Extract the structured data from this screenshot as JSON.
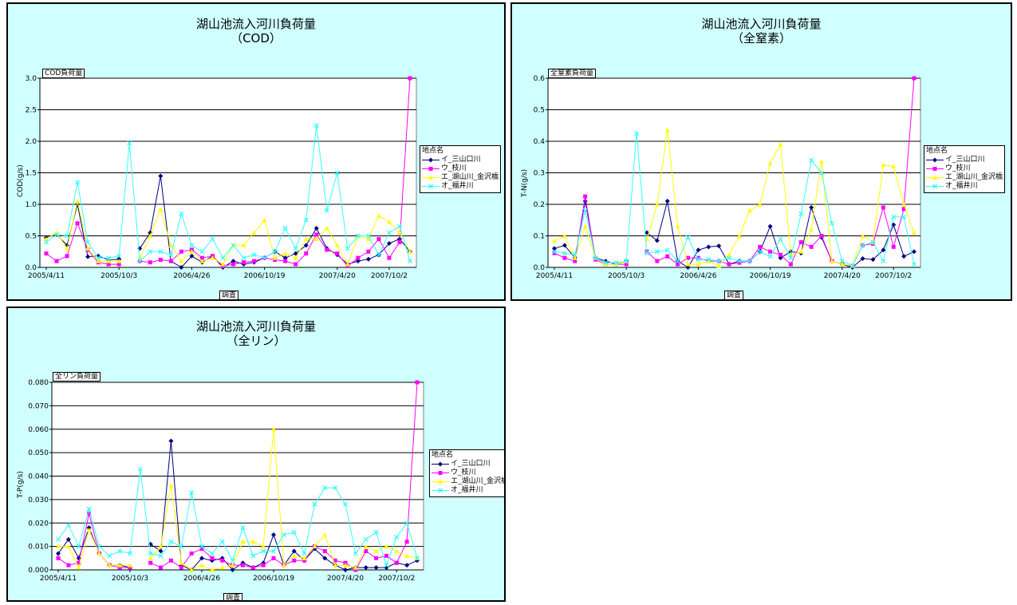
{
  "x_ticks": [
    "2005/4/11",
    "2005/10/3",
    "2006/4/26",
    "2006/10/19",
    "2007/4/20",
    "2007/10/2"
  ],
  "x_axis_title": "調査",
  "legend_title": "地点名",
  "series_names": [
    "イ_三山口川",
    "ウ_枝川",
    "エ_湖山川_金沢橋",
    "オ_福井川"
  ],
  "series_colors": [
    "#000080",
    "#ff00ff",
    "#ffff00",
    "#33ffff"
  ],
  "series_markers": [
    "diamond",
    "square",
    "triangle",
    "x"
  ],
  "charts": {
    "cod": {
      "title_line1": "湖山池流入河川負荷量",
      "title_line2": "（COD）",
      "y_tag": "COD負荷量",
      "y_label": "COD(g/s)"
    },
    "tn": {
      "title_line1": "湖山池流入河川負荷量",
      "title_line2": "（全窒素）",
      "y_tag": "全窒素負荷量",
      "y_label": "T-N(g/s)"
    },
    "tp": {
      "title_line1": "湖山池流入河川負荷量",
      "title_line2": "（全リン）",
      "y_tag": "全リン負荷量",
      "y_label": "T-P(g/s)"
    }
  },
  "chart_data": [
    {
      "type": "line",
      "title": "湖山池流入河川負荷量（COD）",
      "xlabel": "調査",
      "ylabel": "COD(g/s)",
      "ylim": [
        0,
        3.0
      ],
      "y_ticks": [
        "0.0",
        "0.5",
        "1.0",
        "1.5",
        "2.0",
        "2.5",
        "3.0"
      ],
      "x_tick_labels": [
        "2005/4/11",
        "2005/10/3",
        "2006/4/26",
        "2006/10/19",
        "2007/4/20",
        "2007/10/2"
      ],
      "grid": true,
      "legend": "right",
      "series": [
        {
          "name": "イ_三山口川",
          "values": [
            0.47,
            0.52,
            0.35,
            1.0,
            0.17,
            0.18,
            0.12,
            0.13,
            null,
            0.3,
            0.55,
            1.45,
            0.1,
            0.0,
            0.18,
            0.08,
            0.18,
            0.0,
            0.1,
            0.05,
            0.08,
            0.15,
            0.25,
            0.15,
            0.22,
            0.35,
            0.62,
            0.3,
            0.2,
            0.05,
            0.1,
            0.13,
            0.2,
            0.38,
            0.45,
            0.25
          ]
        },
        {
          "name": "ウ_枝川",
          "values": [
            0.22,
            0.1,
            0.18,
            0.7,
            0.28,
            0.08,
            0.05,
            0.05,
            null,
            0.1,
            0.08,
            0.12,
            0.1,
            0.25,
            0.28,
            0.15,
            0.18,
            0.02,
            0.05,
            0.08,
            0.1,
            0.15,
            0.12,
            0.1,
            0.05,
            0.22,
            0.52,
            0.28,
            0.22,
            0.02,
            0.15,
            0.25,
            0.45,
            0.15,
            0.4,
            3.0
          ]
        },
        {
          "name": "エ_湖山川_金沢橋",
          "values": [
            0.45,
            0.55,
            0.3,
            1.05,
            0.3,
            0.1,
            0.1,
            0.1,
            null,
            0.15,
            0.5,
            0.92,
            0.35,
            0.1,
            0.25,
            0.1,
            0.15,
            0.05,
            0.35,
            0.35,
            0.55,
            0.75,
            0.15,
            0.22,
            0.15,
            0.45,
            0.45,
            0.62,
            0.35,
            0.05,
            0.5,
            0.45,
            0.82,
            0.72,
            0.55,
            0.25
          ]
        },
        {
          "name": "オ_福井川",
          "values": [
            0.4,
            0.52,
            0.5,
            1.35,
            0.4,
            0.15,
            0.15,
            0.18,
            1.97,
            0.1,
            0.25,
            0.25,
            0.2,
            0.85,
            0.35,
            0.25,
            0.45,
            0.15,
            0.35,
            0.15,
            0.2,
            0.15,
            0.25,
            0.62,
            0.3,
            0.75,
            2.25,
            0.9,
            1.5,
            0.3,
            0.5,
            0.5,
            0.2,
            0.55,
            0.65,
            0.1
          ]
        }
      ]
    },
    {
      "type": "line",
      "title": "湖山池流入河川負荷量（全窒素）",
      "xlabel": "調査",
      "ylabel": "T-N(g/s)",
      "ylim": [
        0,
        0.6
      ],
      "y_ticks": [
        "0.0",
        "0.1",
        "0.2",
        "0.3",
        "0.4",
        "0.5",
        "0.6"
      ],
      "x_tick_labels": [
        "2005/4/11",
        "2005/10/3",
        "2006/4/26",
        "2006/10/19",
        "2007/4/20",
        "2007/10/2"
      ],
      "grid": true,
      "legend": "right",
      "series": [
        {
          "name": "イ_三山口川",
          "values": [
            0.06,
            0.07,
            0.03,
            0.21,
            0.03,
            0.02,
            0.01,
            0.02,
            null,
            0.11,
            0.085,
            0.21,
            0.02,
            0.0,
            0.055,
            0.065,
            0.068,
            0.01,
            0.02,
            0.02,
            0.05,
            0.13,
            0.03,
            0.05,
            0.045,
            0.19,
            0.095,
            0.02,
            0.01,
            0.0,
            0.028,
            0.025,
            0.055,
            0.135,
            0.035,
            0.05
          ]
        },
        {
          "name": "ウ_枝川",
          "values": [
            0.045,
            0.03,
            0.02,
            0.225,
            0.025,
            0.01,
            0.01,
            0.01,
            null,
            0.05,
            0.02,
            0.035,
            0.01,
            0.03,
            0.03,
            0.02,
            0.02,
            0.01,
            0.015,
            0.02,
            0.065,
            0.05,
            0.04,
            0.01,
            0.08,
            0.065,
            0.1,
            0.02,
            0.01,
            0.005,
            0.07,
            0.075,
            0.19,
            0.065,
            0.185,
            0.6
          ]
        },
        {
          "name": "エ_湖山川_金沢橋",
          "values": [
            0.085,
            0.1,
            0.03,
            0.13,
            0.03,
            0.01,
            0.01,
            0.02,
            null,
            0.09,
            0.2,
            0.435,
            0.13,
            0.01,
            0.01,
            0.02,
            0.005,
            0.04,
            0.1,
            0.18,
            0.2,
            0.33,
            0.39,
            0.04,
            0.05,
            0.12,
            0.335,
            0.02,
            0.01,
            0.005,
            0.1,
            0.08,
            0.325,
            0.32,
            0.2,
            0.11
          ]
        },
        {
          "name": "オ_福井川",
          "values": [
            0.05,
            0.045,
            0.04,
            0.18,
            0.03,
            0.015,
            0.015,
            0.02,
            0.425,
            0.045,
            0.05,
            0.055,
            0.02,
            0.095,
            0.025,
            0.025,
            0.02,
            0.03,
            0.02,
            0.02,
            0.05,
            0.035,
            0.09,
            0.03,
            0.17,
            0.34,
            0.3,
            0.14,
            0.02,
            0.005,
            0.07,
            0.08,
            0.02,
            0.16,
            0.16,
            0.01
          ]
        }
      ]
    },
    {
      "type": "line",
      "title": "湖山池流入河川負荷量（全リン）",
      "xlabel": "調査",
      "ylabel": "T-P(g/s)",
      "ylim": [
        0,
        0.08
      ],
      "y_ticks": [
        "0.000",
        "0.010",
        "0.020",
        "0.030",
        "0.040",
        "0.050",
        "0.060",
        "0.070",
        "0.080"
      ],
      "x_tick_labels": [
        "2005/4/11",
        "2005/10/3",
        "2006/4/26",
        "2006/10/19",
        "2007/4/20",
        "2007/10/2"
      ],
      "grid": true,
      "legend": "right",
      "series": [
        {
          "name": "イ_三山口川",
          "values": [
            0.007,
            0.013,
            0.005,
            0.018,
            0.007,
            0.002,
            0.002,
            0.001,
            null,
            0.011,
            0.008,
            0.055,
            0.002,
            0.0,
            0.005,
            0.004,
            0.005,
            0.0,
            0.003,
            0.001,
            0.003,
            0.015,
            0.002,
            0.008,
            0.004,
            0.009,
            0.005,
            0.002,
            0.0,
            0.001,
            0.001,
            0.001,
            0.001,
            0.003,
            0.002,
            0.004
          ]
        },
        {
          "name": "ウ_枝川",
          "values": [
            0.005,
            0.002,
            0.003,
            0.024,
            0.007,
            0.002,
            0.001,
            0.001,
            null,
            0.003,
            0.001,
            0.004,
            0.001,
            0.007,
            0.009,
            0.005,
            0.004,
            0.002,
            0.002,
            0.001,
            0.002,
            0.005,
            0.002,
            0.004,
            0.004,
            0.01,
            0.008,
            0.004,
            0.003,
            0.0,
            0.008,
            0.005,
            0.006,
            0.003,
            0.012,
            0.08
          ]
        },
        {
          "name": "エ_湖山川_金沢橋",
          "values": [
            0.01,
            0.01,
            0.001,
            0.017,
            0.007,
            0.002,
            0.002,
            0.002,
            null,
            0.005,
            0.01,
            0.036,
            0.003,
            0.0,
            0.002,
            0.0,
            0.001,
            0.002,
            0.012,
            0.012,
            0.01,
            0.06,
            0.002,
            0.006,
            0.005,
            0.01,
            0.015,
            0.002,
            0.002,
            0.001,
            0.01,
            0.008,
            0.01,
            0.008,
            0.006,
            0.005
          ]
        },
        {
          "name": "オ_福井川",
          "values": [
            0.013,
            0.019,
            0.01,
            0.026,
            0.01,
            0.006,
            0.008,
            0.007,
            0.043,
            0.007,
            0.006,
            0.012,
            0.01,
            0.033,
            0.01,
            0.007,
            0.012,
            0.004,
            0.018,
            0.006,
            0.008,
            0.008,
            0.015,
            0.016,
            0.007,
            0.028,
            0.035,
            0.035,
            0.028,
            0.007,
            0.013,
            0.016,
            0.002,
            0.014,
            0.02,
            0.005
          ]
        }
      ]
    }
  ]
}
